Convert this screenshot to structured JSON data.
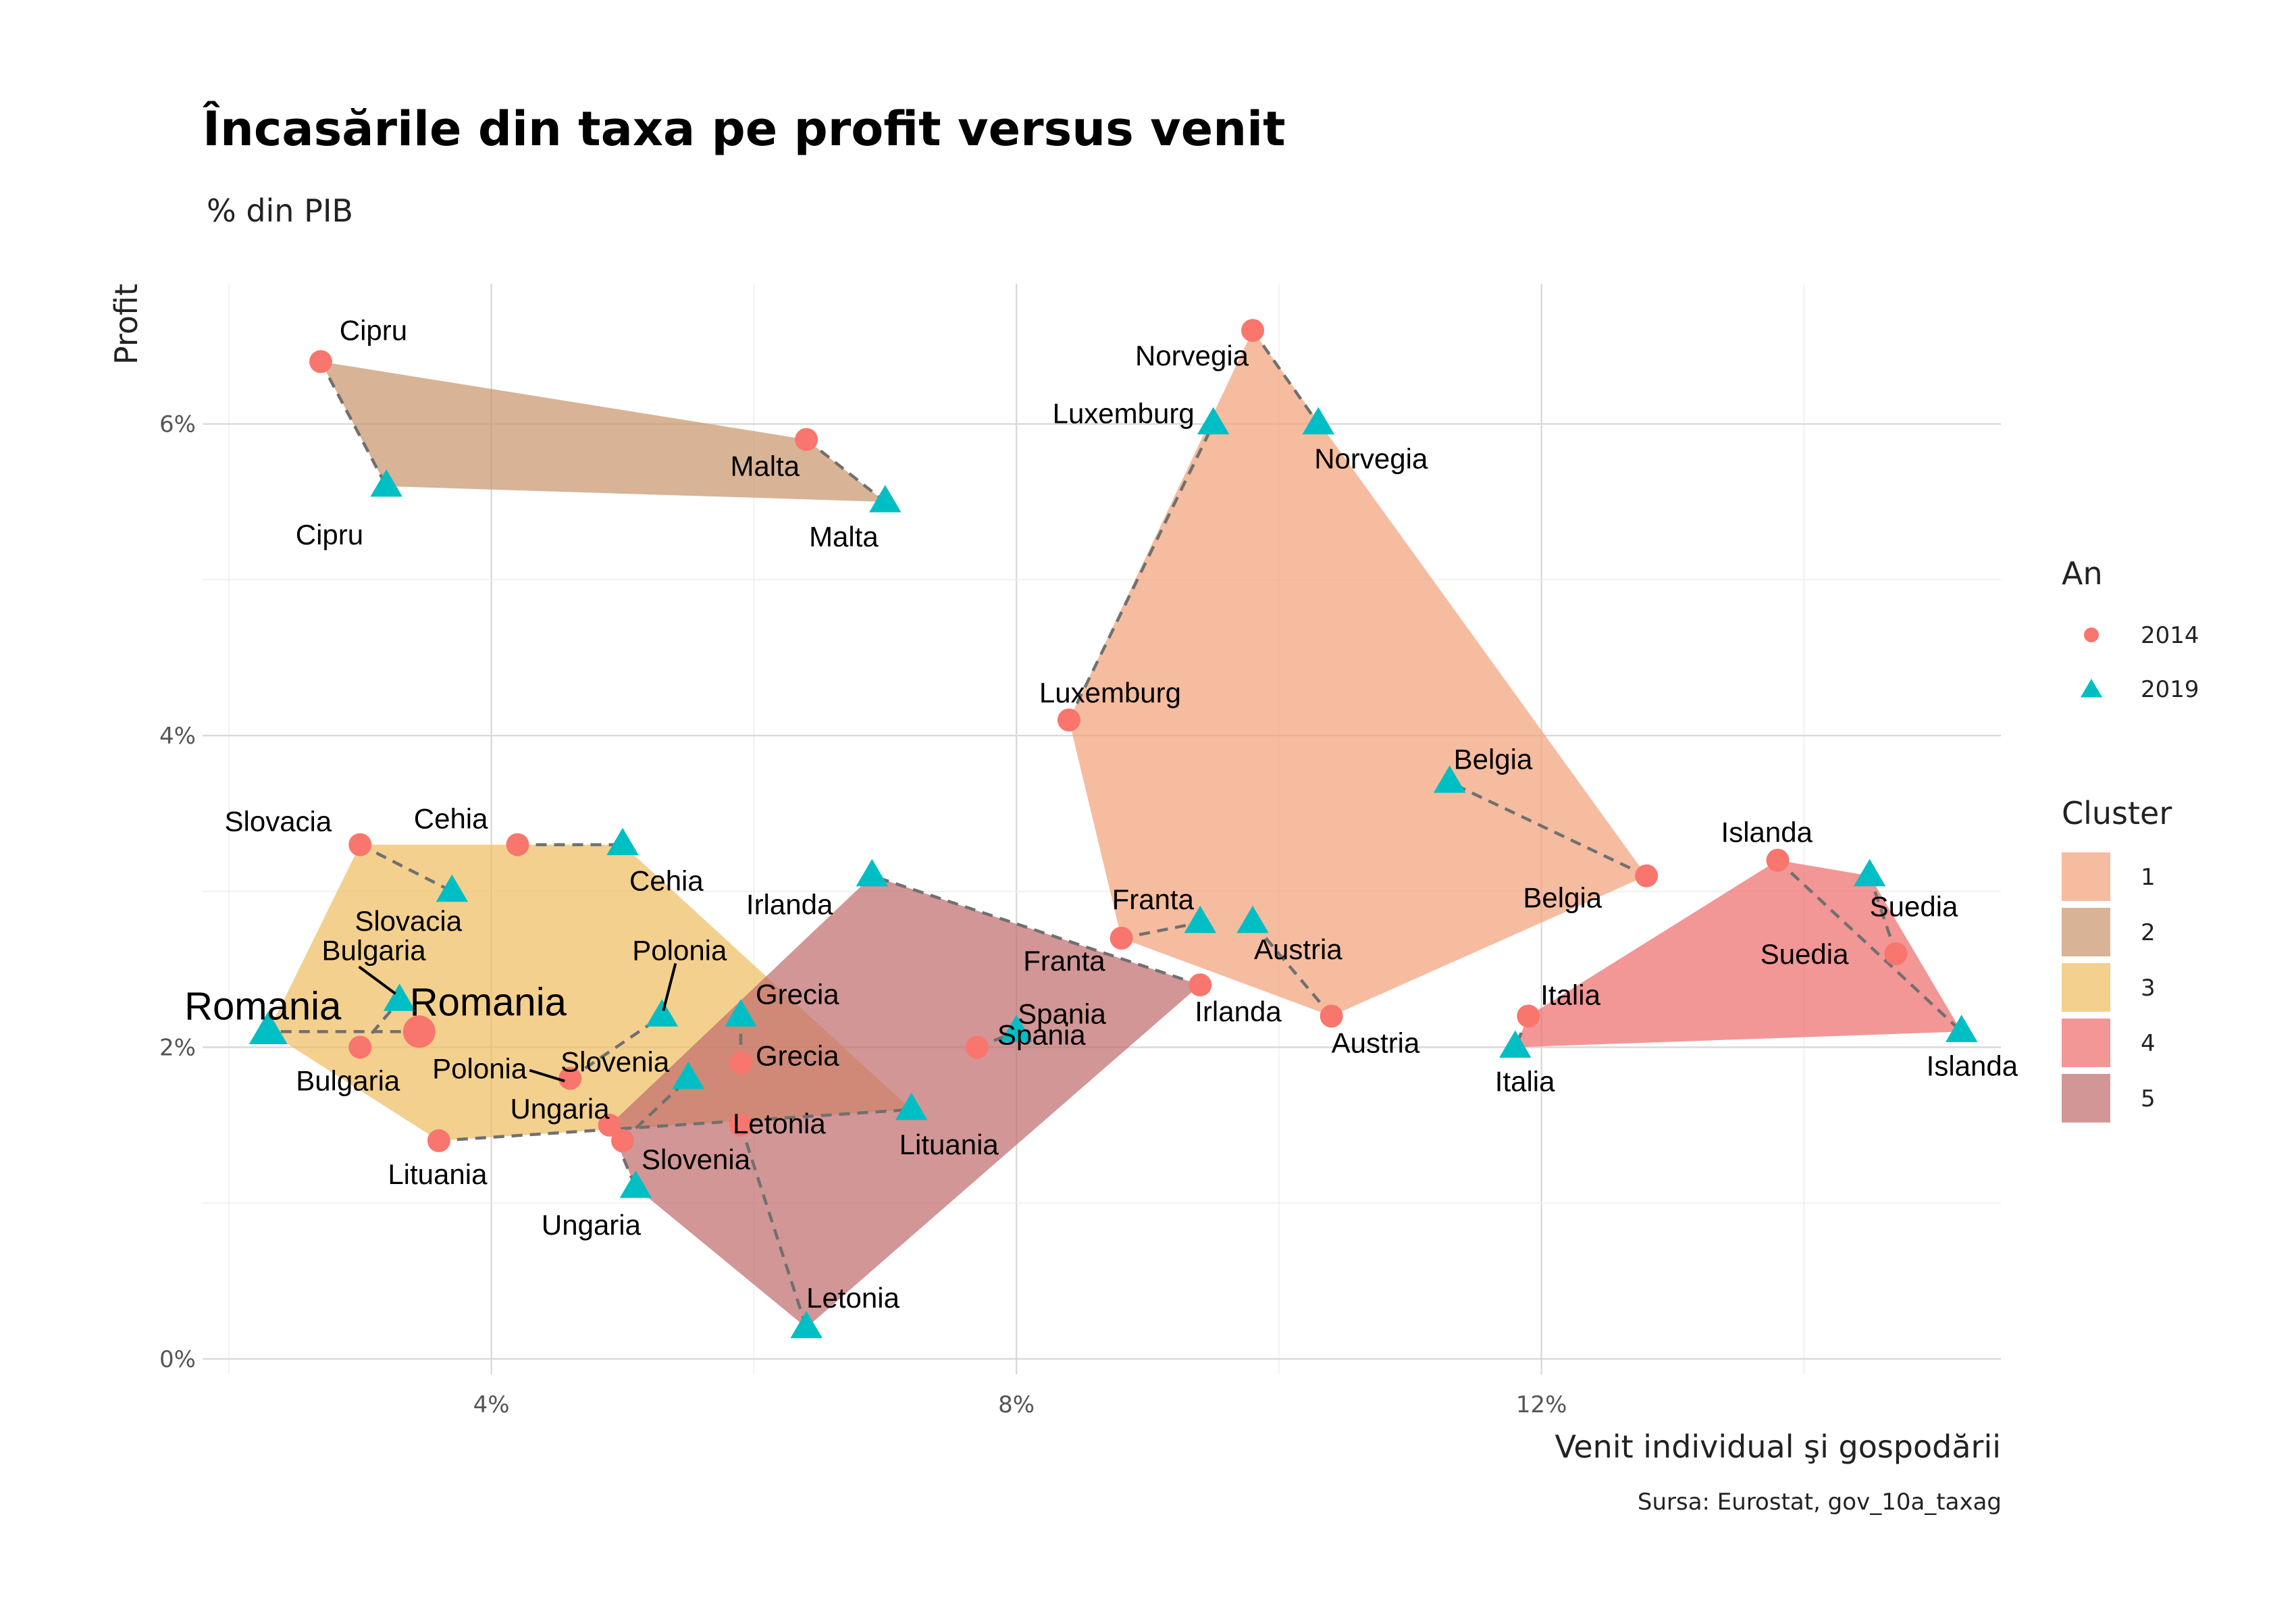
{
  "title": "Încasările din taxa pe profit versus venit",
  "subtitle": "% din PIB",
  "caption": "Sursa: Eurostat, gov_10a_taxag",
  "chart_data": {
    "type": "scatter",
    "xlabel": "Venit individual şi gospodării",
    "ylabel": "Profit",
    "xlim": [
      1.8,
      15.5
    ],
    "ylim": [
      -0.1,
      6.9
    ],
    "x_ticks": [
      {
        "value": 4,
        "label": "4%"
      },
      {
        "value": 8,
        "label": "8%"
      },
      {
        "value": 12,
        "label": "12%"
      }
    ],
    "y_ticks": [
      {
        "value": 0,
        "label": "0%"
      },
      {
        "value": 2,
        "label": "2%"
      },
      {
        "value": 4,
        "label": "4%"
      },
      {
        "value": 6,
        "label": "6%"
      }
    ],
    "legend_position": "right",
    "legend_an": {
      "title": "An",
      "items": [
        {
          "label": "2014",
          "color": "#F8766D",
          "shape": "circle"
        },
        {
          "label": "2019",
          "color": "#00BFC4",
          "shape": "triangle"
        }
      ]
    },
    "legend_cluster": {
      "title": "Cluster",
      "items": [
        {
          "label": "1",
          "color": "#F2A27A"
        },
        {
          "label": "2",
          "color": "#C9966E"
        },
        {
          "label": "3",
          "color": "#F0BE63"
        },
        {
          "label": "4",
          "color": "#EE6E6E"
        },
        {
          "label": "5",
          "color": "#C16D6D"
        }
      ]
    },
    "countries": [
      {
        "name": "Cipru",
        "cluster": "2",
        "x2014": 2.7,
        "y2014": 6.4,
        "x2019": 3.2,
        "y2019": 5.6
      },
      {
        "name": "Malta",
        "cluster": "2",
        "x2014": 6.4,
        "y2014": 5.9,
        "x2019": 7.0,
        "y2019": 5.5
      },
      {
        "name": "Norvegia",
        "cluster": "1",
        "x2014": 9.8,
        "y2014": 6.6,
        "x2019": 10.3,
        "y2019": 6.0
      },
      {
        "name": "Luxemburg",
        "cluster": "1",
        "x2014": 8.4,
        "y2014": 4.1,
        "x2019": 9.5,
        "y2019": 6.0
      },
      {
        "name": "Belgia",
        "cluster": "1",
        "x2014": 12.8,
        "y2014": 3.1,
        "x2019": 11.3,
        "y2019": 3.7
      },
      {
        "name": "Franta",
        "cluster": "1",
        "x2014": 8.8,
        "y2014": 2.7,
        "x2019": 9.4,
        "y2019": 2.8
      },
      {
        "name": "Austria",
        "cluster": "1",
        "x2014": 10.4,
        "y2014": 2.2,
        "x2019": 9.8,
        "y2019": 2.8
      },
      {
        "name": "Irlanda",
        "cluster": "5",
        "x2014": 9.4,
        "y2014": 2.4,
        "x2019": 6.9,
        "y2019": 3.1
      },
      {
        "name": "Islanda",
        "cluster": "4",
        "x2014": 13.8,
        "y2014": 3.2,
        "x2019": 15.2,
        "y2019": 2.1
      },
      {
        "name": "Suedia",
        "cluster": "4",
        "x2014": 14.7,
        "y2014": 2.6,
        "x2019": 14.5,
        "y2019": 3.1
      },
      {
        "name": "Italia",
        "cluster": "4",
        "x2014": 11.9,
        "y2014": 2.2,
        "x2019": 11.8,
        "y2019": 2.0
      },
      {
        "name": "Slovacia",
        "cluster": "3",
        "x2014": 3.0,
        "y2014": 3.3,
        "x2019": 3.7,
        "y2019": 3.0
      },
      {
        "name": "Cehia",
        "cluster": "3",
        "x2014": 4.2,
        "y2014": 3.3,
        "x2019": 5.0,
        "y2019": 3.3
      },
      {
        "name": "Bulgaria",
        "cluster": "3",
        "x2014": 3.0,
        "y2014": 2.0,
        "x2019": 3.3,
        "y2019": 2.3
      },
      {
        "name": "Romania",
        "cluster": "3",
        "x2014": 3.45,
        "y2014": 2.1,
        "x2019": 2.3,
        "y2019": 2.1
      },
      {
        "name": "Polonia",
        "cluster": "3",
        "x2014": 4.6,
        "y2014": 1.8,
        "x2019": 5.3,
        "y2019": 2.2
      },
      {
        "name": "Lituania",
        "cluster": "3",
        "x2014": 3.6,
        "y2014": 1.4,
        "x2019": 7.2,
        "y2019": 1.6
      },
      {
        "name": "Grecia",
        "cluster": "5",
        "x2014": 5.9,
        "y2014": 1.9,
        "x2019": 5.9,
        "y2019": 2.2
      },
      {
        "name": "Slovenia",
        "cluster": "5",
        "x2014": 5.0,
        "y2014": 1.4,
        "x2019": 5.5,
        "y2019": 1.8
      },
      {
        "name": "Ungaria",
        "cluster": "5",
        "x2014": 4.9,
        "y2014": 1.5,
        "x2019": 5.1,
        "y2019": 1.1
      },
      {
        "name": "Letonia",
        "cluster": "5",
        "x2014": 5.9,
        "y2014": 1.5,
        "x2019": 6.4,
        "y2019": 0.2
      },
      {
        "name": "Spania",
        "cluster": "5",
        "x2014": 7.7,
        "y2014": 2.0,
        "x2019": 8.0,
        "y2019": 2.1
      }
    ]
  }
}
